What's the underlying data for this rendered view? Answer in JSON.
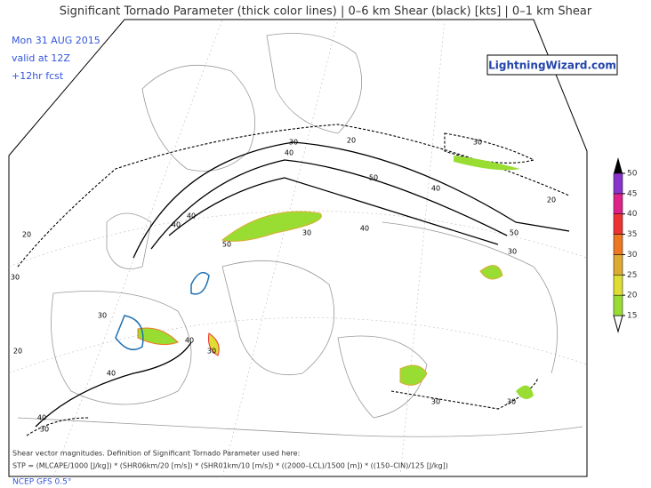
{
  "header": {
    "title": "Significant Tornado Parameter (thick color lines) | 0–6 km Shear (black) [kts] | 0–1 km Shear"
  },
  "info": {
    "date": "Mon 31 AUG 2015",
    "valid": "valid at 12Z",
    "forecast": "+12hr fcst"
  },
  "logo": "LightningWizard.com",
  "legend": {
    "levels": [
      15,
      20,
      25,
      30,
      35,
      40,
      45,
      50
    ],
    "colors": [
      "#99dd33",
      "#dddd33",
      "#ddaa33",
      "#ee7722",
      "#ee3333",
      "#dd2288",
      "#8833cc"
    ]
  },
  "contour_labels": [
    "30",
    "40",
    "50",
    "40",
    "50",
    "40",
    "30",
    "50",
    "40",
    "40",
    "30",
    "30",
    "30",
    "40",
    "40",
    "30",
    "20",
    "20",
    "20",
    "30",
    "30",
    "30",
    "40",
    "30",
    "20"
  ],
  "footer": {
    "line1": "Shear vector magnitudes. Definition of Significant Tornado Parameter used here:",
    "line2": "STP = (MLCAPE/1000 [J/kg]) * (SHR06km/20 [m/s]) * (SHR01km/10 [m/s]) * ((2000–LCL)/1500 [m]) * ((150–CIN)/125 [J/kg])",
    "source": "NCEP GFS 0.5°"
  }
}
